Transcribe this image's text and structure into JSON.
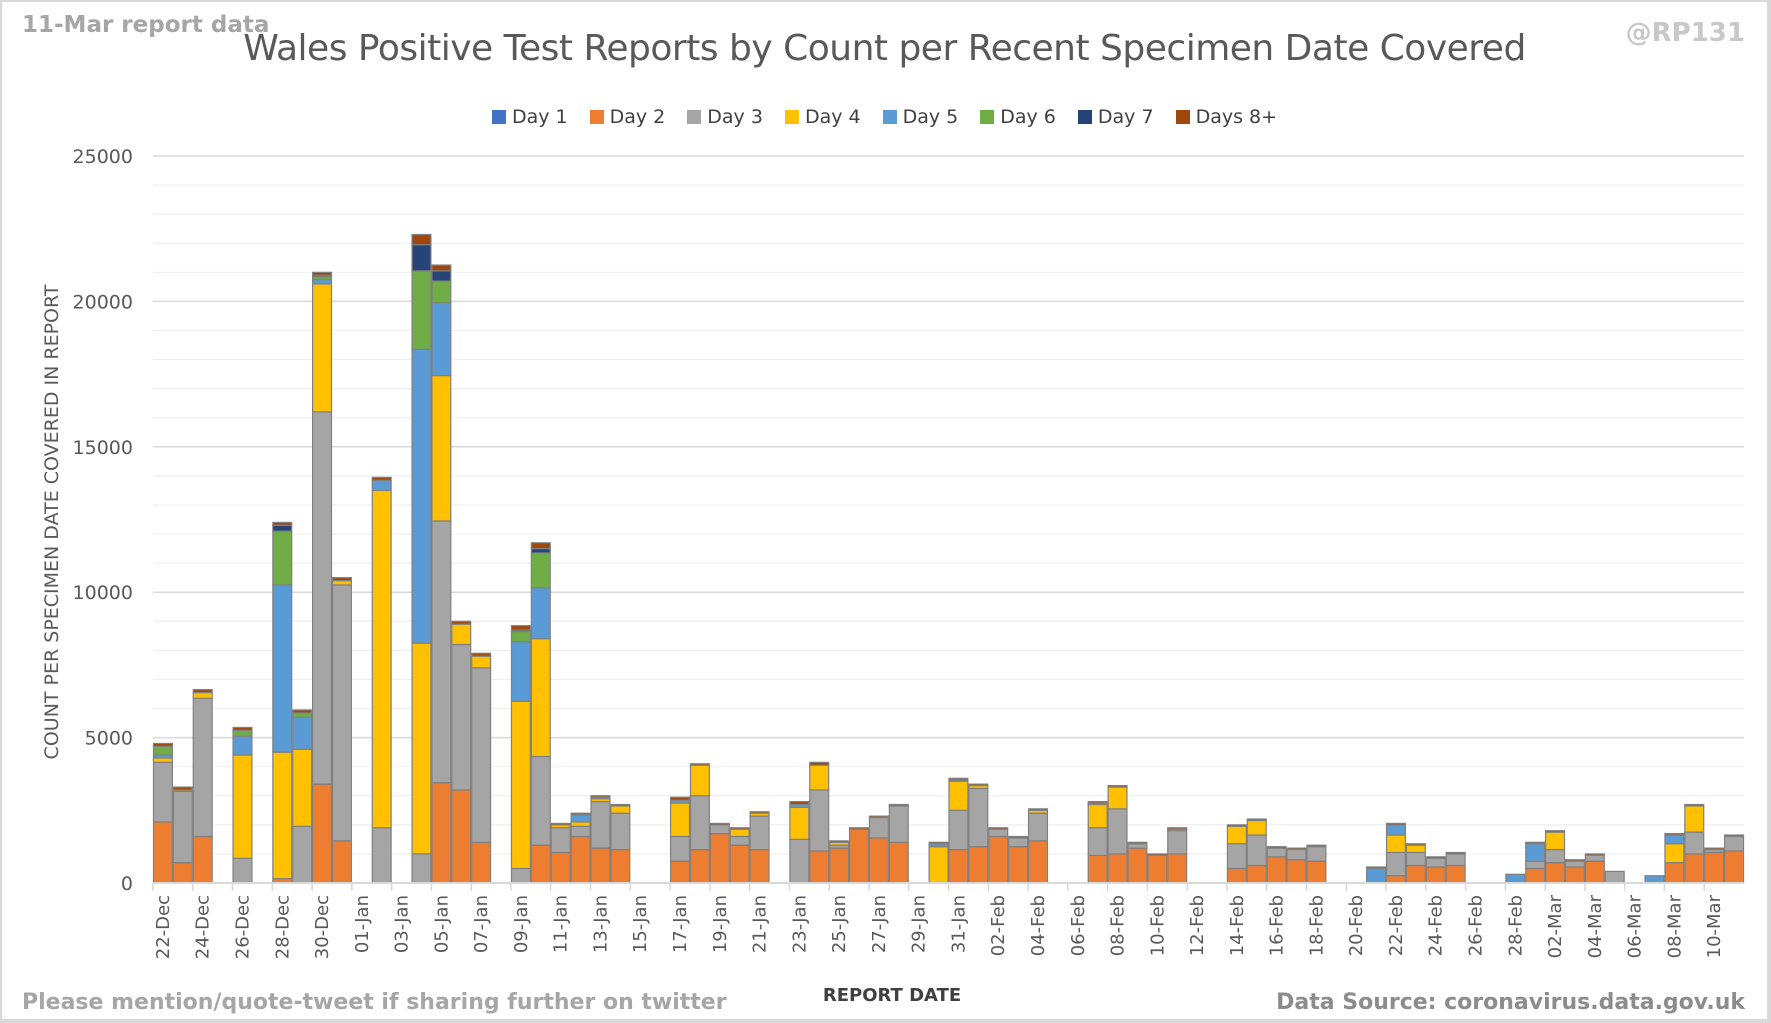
{
  "header": {
    "subtitle": "11-Mar report data",
    "handle": "@RP131"
  },
  "footer": {
    "left_note": "Please mention/quote-tweet if sharing further on twitter",
    "source": "Data Source: coronavirus.data.gov.uk"
  },
  "chart_data": {
    "type": "bar",
    "stacked": true,
    "title": "Wales Positive Test Reports by Count per Recent Specimen Date Covered",
    "xlabel": "REPORT DATE",
    "ylabel": "COUNT PER SPECIMEN DATE COVERED IN REPORT",
    "ylim": [
      0,
      25000
    ],
    "yticks": [
      "0",
      "5000",
      "10000",
      "15000",
      "20000",
      "25000"
    ],
    "grid": "horizontal, minor every 1000",
    "legend_position": "top",
    "categories": [
      "22-Dec",
      "23-Dec",
      "24-Dec",
      "25-Dec",
      "26-Dec",
      "27-Dec",
      "28-Dec",
      "29-Dec",
      "30-Dec",
      "31-Dec",
      "01-Jan",
      "02-Jan",
      "03-Jan",
      "04-Jan",
      "05-Jan",
      "06-Jan",
      "07-Jan",
      "08-Jan",
      "09-Jan",
      "10-Jan",
      "11-Jan",
      "12-Jan",
      "13-Jan",
      "14-Jan",
      "15-Jan",
      "16-Jan",
      "17-Jan",
      "18-Jan",
      "19-Jan",
      "20-Jan",
      "21-Jan",
      "22-Jan",
      "23-Jan",
      "24-Jan",
      "25-Jan",
      "26-Jan",
      "27-Jan",
      "28-Jan",
      "29-Jan",
      "30-Jan",
      "31-Jan",
      "01-Feb",
      "02-Feb",
      "03-Feb",
      "04-Feb",
      "05-Feb",
      "06-Feb",
      "07-Feb",
      "08-Feb",
      "09-Feb",
      "10-Feb",
      "11-Feb",
      "12-Feb",
      "13-Feb",
      "14-Feb",
      "15-Feb",
      "16-Feb",
      "17-Feb",
      "18-Feb",
      "19-Feb",
      "20-Feb",
      "21-Feb",
      "22-Feb",
      "23-Feb",
      "24-Feb",
      "25-Feb",
      "26-Feb",
      "27-Feb",
      "28-Feb",
      "01-Mar",
      "02-Mar",
      "03-Mar",
      "04-Mar",
      "05-Mar",
      "06-Mar",
      "07-Mar",
      "08-Mar",
      "09-Mar",
      "10-Mar",
      "11-Mar"
    ],
    "tick_labels": [
      "22-Dec",
      "24-Dec",
      "26-Dec",
      "28-Dec",
      "30-Dec",
      "01-Jan",
      "03-Jan",
      "05-Jan",
      "07-Jan",
      "09-Jan",
      "11-Jan",
      "13-Jan",
      "15-Jan",
      "17-Jan",
      "19-Jan",
      "21-Jan",
      "23-Jan",
      "25-Jan",
      "27-Jan",
      "29-Jan",
      "31-Jan",
      "02-Feb",
      "04-Feb",
      "06-Feb",
      "08-Feb",
      "10-Feb",
      "12-Feb",
      "14-Feb",
      "16-Feb",
      "18-Feb",
      "20-Feb",
      "22-Feb",
      "24-Feb",
      "26-Feb",
      "28-Feb",
      "02-Mar",
      "04-Mar",
      "06-Mar",
      "08-Mar",
      "10-Mar"
    ],
    "series": [
      {
        "name": "Day 1",
        "color": "#4472c4",
        "values": [
          0,
          0,
          0,
          0,
          0,
          0,
          0,
          0,
          0,
          0,
          0,
          0,
          0,
          0,
          0,
          0,
          0,
          0,
          0,
          0,
          0,
          0,
          0,
          0,
          0,
          0,
          0,
          0,
          0,
          0,
          0,
          0,
          0,
          0,
          0,
          0,
          0,
          0,
          0,
          0,
          0,
          0,
          0,
          0,
          0,
          0,
          0,
          0,
          0,
          0,
          0,
          0,
          0,
          0,
          0,
          0,
          0,
          0,
          0,
          0,
          0,
          0,
          0,
          0,
          0,
          0,
          0,
          0,
          0,
          0,
          0,
          0,
          0,
          0,
          0,
          0,
          0,
          0,
          0,
          0
        ]
      },
      {
        "name": "Day 2",
        "color": "#ed7d31",
        "values": [
          2100,
          700,
          1600,
          0,
          0,
          0,
          150,
          0,
          3400,
          1450,
          0,
          0,
          0,
          0,
          3450,
          3200,
          1400,
          0,
          0,
          1300,
          1050,
          1600,
          1200,
          1150,
          0,
          0,
          750,
          1150,
          1700,
          1300,
          1150,
          0,
          0,
          1100,
          1200,
          1850,
          1550,
          1400,
          0,
          0,
          1150,
          1250,
          1600,
          1250,
          1450,
          0,
          0,
          950,
          1000,
          1200,
          950,
          1000,
          0,
          0,
          500,
          600,
          900,
          800,
          750,
          0,
          0,
          0,
          250,
          600,
          550,
          600,
          0,
          0,
          0,
          500,
          700,
          550,
          750,
          0,
          0,
          0,
          700,
          1000,
          1050,
          1100
        ]
      },
      {
        "name": "Day 3",
        "color": "#a5a5a5",
        "values": [
          2050,
          2450,
          4750,
          0,
          850,
          0,
          0,
          1950,
          12800,
          8800,
          0,
          1900,
          0,
          1000,
          9000,
          5000,
          6000,
          0,
          500,
          3050,
          850,
          350,
          1600,
          1250,
          0,
          0,
          850,
          1850,
          300,
          300,
          1150,
          0,
          1500,
          2100,
          100,
          0,
          700,
          1250,
          0,
          0,
          1350,
          2000,
          250,
          300,
          950,
          0,
          0,
          950,
          1550,
          150,
          0,
          800,
          0,
          0,
          850,
          1050,
          300,
          350,
          500,
          0,
          0,
          0,
          800,
          450,
          300,
          400,
          0,
          0,
          0,
          250,
          450,
          200,
          200,
          400,
          0,
          0,
          0,
          750,
          100,
          500
        ]
      },
      {
        "name": "Day 4",
        "color": "#ffc000",
        "values": [
          150,
          50,
          200,
          0,
          3550,
          0,
          4350,
          2650,
          4400,
          150,
          0,
          11600,
          0,
          7250,
          5000,
          700,
          400,
          0,
          5750,
          4050,
          100,
          150,
          100,
          250,
          0,
          0,
          1150,
          1050,
          0,
          250,
          100,
          0,
          1100,
          850,
          100,
          0,
          0,
          0,
          0,
          1250,
          1000,
          100,
          0,
          0,
          100,
          0,
          0,
          800,
          750,
          0,
          0,
          50,
          0,
          0,
          600,
          500,
          0,
          0,
          0,
          0,
          0,
          0,
          600,
          250,
          0,
          0,
          0,
          0,
          0,
          0,
          600,
          0,
          0,
          0,
          0,
          0,
          650,
          900,
          0,
          0
        ]
      },
      {
        "name": "Day 5",
        "color": "#5b9bd5",
        "values": [
          100,
          0,
          0,
          0,
          650,
          0,
          5750,
          1100,
          150,
          0,
          0,
          350,
          0,
          10100,
          2500,
          0,
          0,
          0,
          2050,
          1750,
          0,
          250,
          50,
          0,
          0,
          0,
          100,
          0,
          0,
          0,
          0,
          0,
          100,
          0,
          0,
          0,
          0,
          0,
          0,
          100,
          50,
          0,
          0,
          0,
          0,
          0,
          0,
          50,
          0,
          0,
          0,
          0,
          0,
          0,
          0,
          0,
          0,
          0,
          0,
          0,
          0,
          500,
          350,
          0,
          0,
          0,
          0,
          0,
          300,
          600,
          0,
          0,
          0,
          0,
          0,
          250,
          300,
          0,
          0,
          0
        ]
      },
      {
        "name": "Day 6",
        "color": "#70ad47",
        "values": [
          300,
          0,
          0,
          0,
          200,
          0,
          1850,
          150,
          100,
          0,
          0,
          0,
          0,
          2700,
          750,
          0,
          0,
          0,
          350,
          1200,
          0,
          0,
          0,
          0,
          0,
          0,
          0,
          0,
          0,
          0,
          0,
          0,
          0,
          0,
          0,
          0,
          0,
          0,
          0,
          0,
          0,
          0,
          0,
          0,
          0,
          0,
          0,
          0,
          0,
          0,
          0,
          0,
          0,
          0,
          0,
          0,
          0,
          0,
          0,
          0,
          0,
          0,
          0,
          0,
          0,
          0,
          0,
          0,
          0,
          0,
          0,
          0,
          0,
          0,
          0,
          0,
          0,
          0,
          0,
          0
        ]
      },
      {
        "name": "Day 7",
        "color": "#264478",
        "values": [
          0,
          0,
          0,
          0,
          0,
          0,
          200,
          0,
          50,
          0,
          0,
          0,
          0,
          900,
          350,
          0,
          0,
          0,
          50,
          150,
          0,
          0,
          0,
          0,
          0,
          0,
          0,
          0,
          0,
          0,
          0,
          0,
          0,
          0,
          0,
          0,
          0,
          0,
          0,
          0,
          0,
          0,
          0,
          0,
          0,
          0,
          0,
          0,
          0,
          0,
          0,
          0,
          0,
          0,
          0,
          0,
          0,
          0,
          0,
          0,
          0,
          0,
          0,
          0,
          0,
          0,
          0,
          0,
          0,
          0,
          0,
          0,
          0,
          0,
          0,
          0,
          0,
          0,
          0,
          0
        ]
      },
      {
        "name": "Days 8+",
        "color": "#9e480e",
        "values": [
          100,
          100,
          100,
          0,
          100,
          0,
          100,
          100,
          100,
          100,
          0,
          100,
          0,
          350,
          200,
          100,
          100,
          0,
          150,
          200,
          50,
          50,
          50,
          50,
          0,
          0,
          100,
          50,
          50,
          50,
          50,
          0,
          100,
          100,
          50,
          50,
          50,
          50,
          0,
          50,
          50,
          50,
          50,
          50,
          50,
          0,
          0,
          50,
          50,
          50,
          50,
          50,
          0,
          0,
          50,
          50,
          50,
          50,
          50,
          0,
          0,
          50,
          50,
          50,
          50,
          50,
          0,
          0,
          0,
          50,
          50,
          50,
          50,
          0,
          0,
          0,
          50,
          50,
          50,
          50
        ]
      }
    ]
  }
}
